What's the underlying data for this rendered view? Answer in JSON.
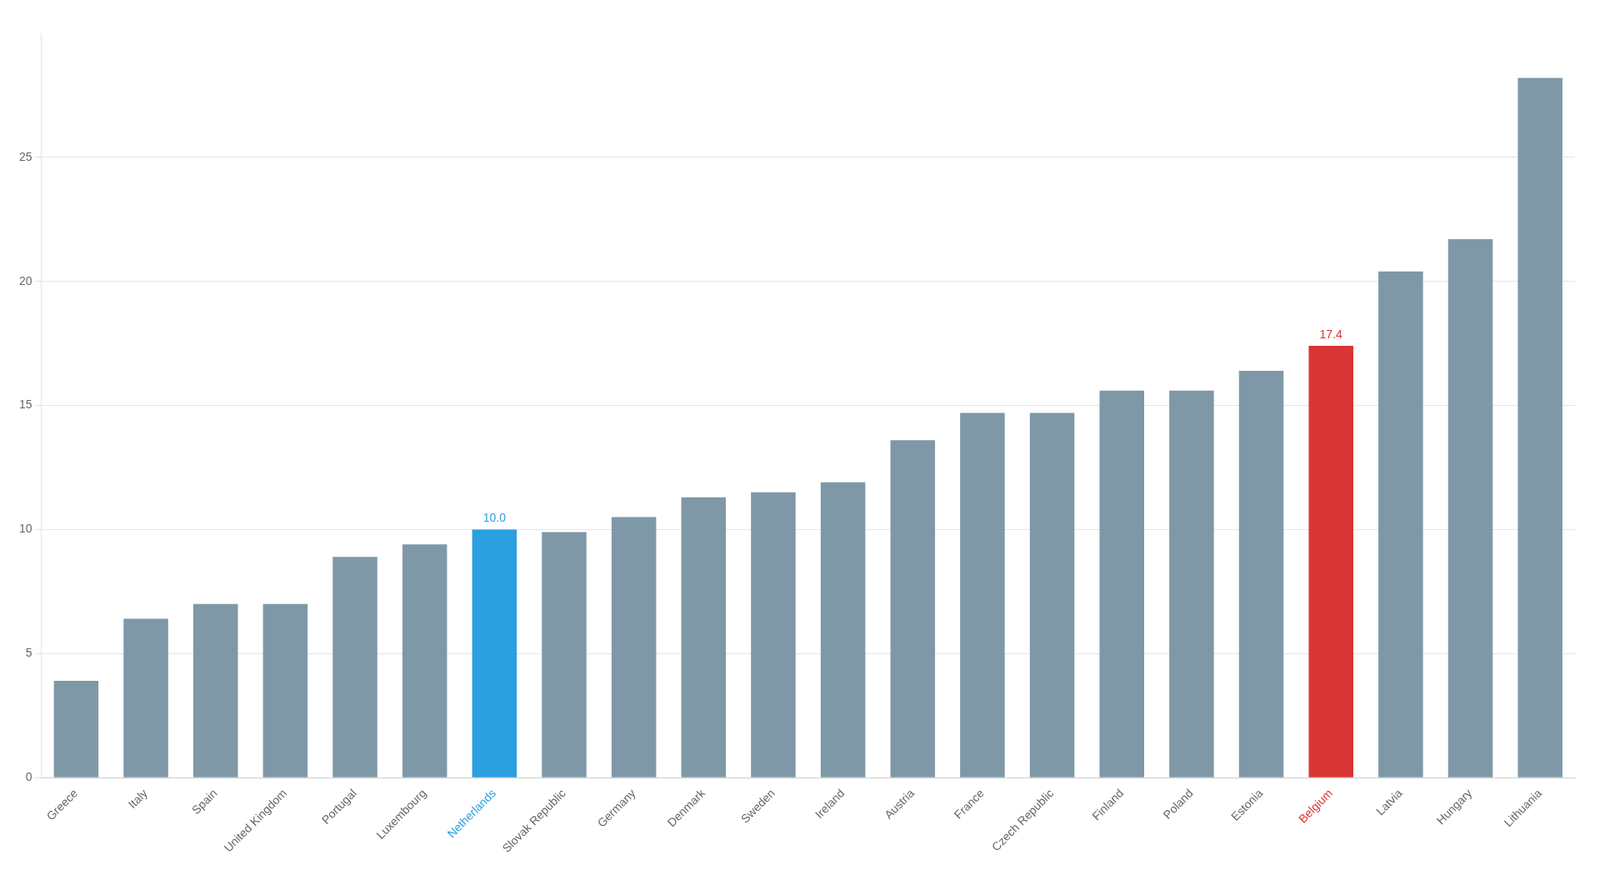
{
  "chart_data": {
    "type": "bar",
    "categories": [
      "Greece",
      "Italy",
      "Spain",
      "United Kingdom",
      "Portugal",
      "Luxembourg",
      "Netherlands",
      "Slovak Republic",
      "Germany",
      "Denmark",
      "Sweden",
      "Ireland",
      "Austria",
      "France",
      "Czech Republic",
      "Finland",
      "Poland",
      "Estonia",
      "Belgium",
      "Latvia",
      "Hungary",
      "Lithuania"
    ],
    "values": [
      3.9,
      6.4,
      7.0,
      7.0,
      8.9,
      9.4,
      10.0,
      9.9,
      10.5,
      11.3,
      11.5,
      11.9,
      13.6,
      14.7,
      14.7,
      15.6,
      15.6,
      16.4,
      17.4,
      20.4,
      21.7,
      28.2
    ],
    "colors": [
      "#7f98a7",
      "#7f98a7",
      "#7f98a7",
      "#7f98a7",
      "#7f98a7",
      "#7f98a7",
      "#2b9fdf",
      "#7f98a7",
      "#7f98a7",
      "#7f98a7",
      "#7f98a7",
      "#7f98a7",
      "#7f98a7",
      "#7f98a7",
      "#7f98a7",
      "#7f98a7",
      "#7f98a7",
      "#7f98a7",
      "#d93535",
      "#7f98a7",
      "#7f98a7",
      "#7f98a7"
    ],
    "annotations": [
      {
        "category": "Netherlands",
        "text": "10.0",
        "color": "#2b9fdf"
      },
      {
        "category": "Belgium",
        "text": "17.4",
        "color": "#d93535"
      }
    ],
    "ylim": [
      0,
      30
    ],
    "yticks": [
      0,
      5,
      10,
      15,
      20,
      25
    ],
    "grid": true
  }
}
